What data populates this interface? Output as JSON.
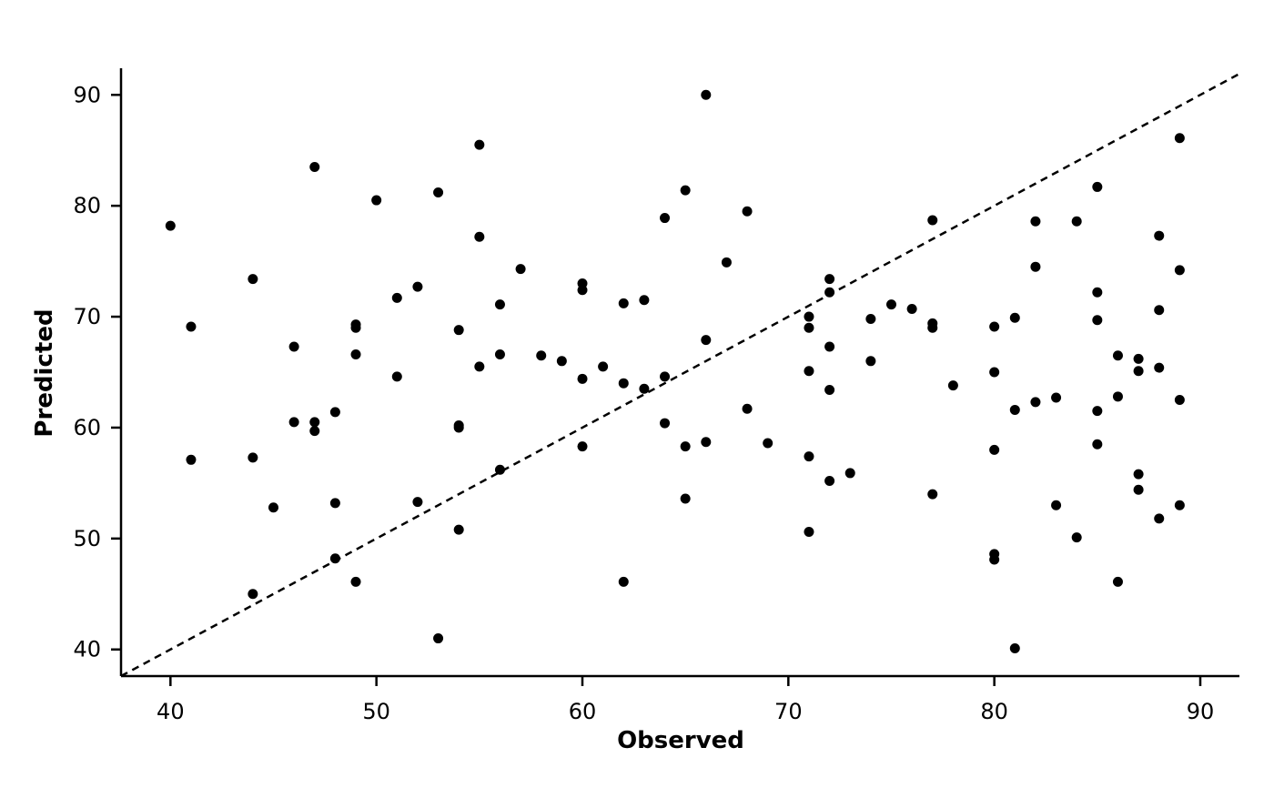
{
  "chart_data": {
    "type": "scatter",
    "title": "",
    "xlabel": "Observed",
    "ylabel": "Predicted",
    "xlim": [
      37.6,
      91.9
    ],
    "ylim": [
      37.6,
      92.4
    ],
    "xticks": [
      40,
      50,
      60,
      70,
      80,
      90
    ],
    "yticks": [
      40,
      50,
      60,
      70,
      80,
      90
    ],
    "grid": false,
    "reference_line": {
      "style": "dashed",
      "slope": 1,
      "intercept": 0
    },
    "point_color": "#000000",
    "points": [
      [
        40.0,
        78.2
      ],
      [
        41.0,
        69.1
      ],
      [
        41.0,
        57.1
      ],
      [
        44.0,
        73.4
      ],
      [
        44.0,
        57.3
      ],
      [
        44.0,
        45.0
      ],
      [
        45.0,
        52.8
      ],
      [
        46.0,
        67.3
      ],
      [
        46.0,
        60.5
      ],
      [
        47.0,
        83.5
      ],
      [
        47.0,
        60.5
      ],
      [
        47.0,
        59.7
      ],
      [
        48.0,
        61.4
      ],
      [
        48.0,
        53.2
      ],
      [
        48.0,
        48.2
      ],
      [
        49.0,
        69.3
      ],
      [
        49.0,
        69.0
      ],
      [
        49.0,
        66.6
      ],
      [
        49.0,
        46.1
      ],
      [
        50.0,
        80.5
      ],
      [
        51.0,
        71.7
      ],
      [
        51.0,
        64.6
      ],
      [
        52.0,
        72.7
      ],
      [
        52.0,
        53.3
      ],
      [
        53.0,
        81.2
      ],
      [
        53.0,
        41.0
      ],
      [
        54.0,
        68.8
      ],
      [
        54.0,
        60.2
      ],
      [
        54.0,
        60.0
      ],
      [
        54.0,
        50.8
      ],
      [
        55.0,
        85.5
      ],
      [
        55.0,
        77.2
      ],
      [
        55.0,
        65.5
      ],
      [
        56.0,
        71.1
      ],
      [
        56.0,
        66.6
      ],
      [
        56.0,
        56.2
      ],
      [
        57.0,
        74.3
      ],
      [
        58.0,
        66.5
      ],
      [
        59.0,
        66.0
      ],
      [
        60.0,
        73.0
      ],
      [
        60.0,
        72.4
      ],
      [
        60.0,
        64.4
      ],
      [
        60.0,
        58.3
      ],
      [
        61.0,
        65.5
      ],
      [
        62.0,
        71.2
      ],
      [
        62.0,
        64.0
      ],
      [
        62.0,
        46.1
      ],
      [
        63.0,
        71.5
      ],
      [
        63.0,
        63.5
      ],
      [
        64.0,
        78.9
      ],
      [
        64.0,
        64.6
      ],
      [
        64.0,
        60.4
      ],
      [
        65.0,
        81.4
      ],
      [
        65.0,
        58.3
      ],
      [
        65.0,
        53.6
      ],
      [
        66.0,
        90.0
      ],
      [
        66.0,
        67.9
      ],
      [
        66.0,
        58.7
      ],
      [
        67.0,
        74.9
      ],
      [
        68.0,
        79.5
      ],
      [
        68.0,
        61.7
      ],
      [
        69.0,
        58.6
      ],
      [
        71.0,
        70.0
      ],
      [
        71.0,
        69.0
      ],
      [
        71.0,
        65.1
      ],
      [
        71.0,
        57.4
      ],
      [
        71.0,
        50.6
      ],
      [
        72.0,
        73.4
      ],
      [
        72.0,
        72.2
      ],
      [
        72.0,
        67.3
      ],
      [
        72.0,
        63.4
      ],
      [
        72.0,
        55.2
      ],
      [
        73.0,
        55.9
      ],
      [
        74.0,
        69.8
      ],
      [
        74.0,
        66.0
      ],
      [
        75.0,
        71.1
      ],
      [
        76.0,
        70.7
      ],
      [
        77.0,
        78.7
      ],
      [
        77.0,
        69.4
      ],
      [
        77.0,
        69.0
      ],
      [
        77.0,
        54.0
      ],
      [
        78.0,
        63.8
      ],
      [
        80.0,
        69.1
      ],
      [
        80.0,
        65.0
      ],
      [
        80.0,
        58.0
      ],
      [
        80.0,
        48.6
      ],
      [
        80.0,
        48.1
      ],
      [
        81.0,
        69.9
      ],
      [
        81.0,
        61.6
      ],
      [
        81.0,
        40.1
      ],
      [
        82.0,
        78.6
      ],
      [
        82.0,
        74.5
      ],
      [
        82.0,
        62.3
      ],
      [
        83.0,
        62.7
      ],
      [
        83.0,
        53.0
      ],
      [
        84.0,
        78.6
      ],
      [
        84.0,
        50.1
      ],
      [
        85.0,
        81.7
      ],
      [
        85.0,
        72.2
      ],
      [
        85.0,
        69.7
      ],
      [
        85.0,
        61.5
      ],
      [
        85.0,
        58.5
      ],
      [
        86.0,
        66.5
      ],
      [
        86.0,
        62.8
      ],
      [
        86.0,
        46.1
      ],
      [
        87.0,
        66.2
      ],
      [
        87.0,
        65.1
      ],
      [
        87.0,
        55.8
      ],
      [
        87.0,
        54.4
      ],
      [
        88.0,
        77.3
      ],
      [
        88.0,
        70.6
      ],
      [
        88.0,
        65.4
      ],
      [
        88.0,
        51.8
      ],
      [
        89.0,
        86.1
      ],
      [
        89.0,
        74.2
      ],
      [
        89.0,
        62.5
      ],
      [
        89.0,
        53.0
      ]
    ]
  }
}
